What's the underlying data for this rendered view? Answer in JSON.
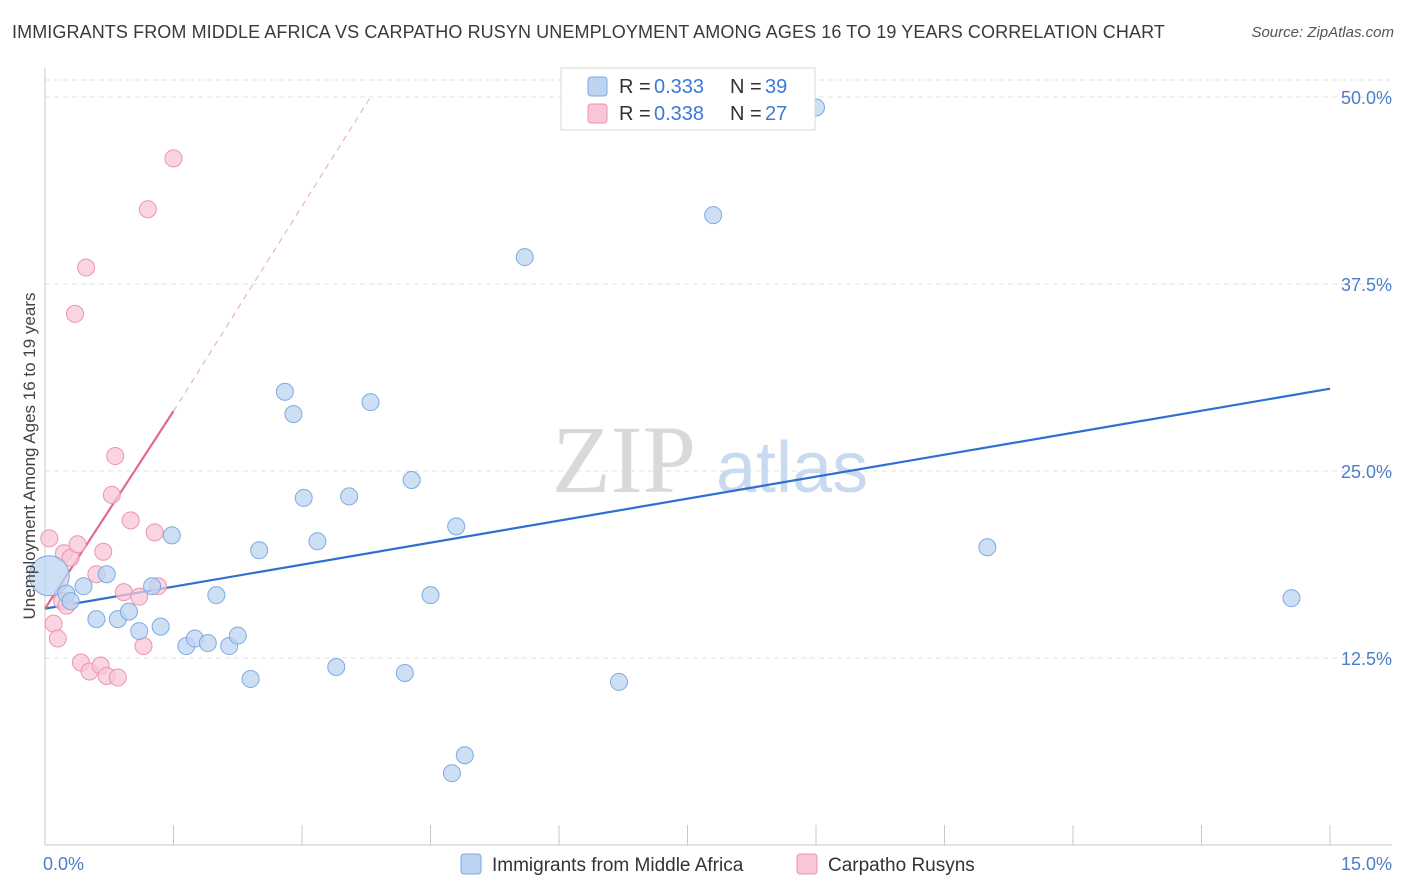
{
  "title": "IMMIGRANTS FROM MIDDLE AFRICA VS CARPATHO RUSYN UNEMPLOYMENT AMONG AGES 16 TO 19 YEARS CORRELATION CHART",
  "source": "Source: ZipAtlas.com",
  "watermark": {
    "zip": "ZIP",
    "atlas": "atlas"
  },
  "legend_top": {
    "series1": {
      "r_label": "R = ",
      "r_value": "0.333",
      "n_label": "N = ",
      "n_value": "39"
    },
    "series2": {
      "r_label": "R = ",
      "r_value": "0.338",
      "n_label": "N = ",
      "n_value": "27"
    }
  },
  "colors": {
    "blue_fill": "#bcd4f2",
    "blue_stroke": "#7eaadf",
    "blue_line": "#2f6fcf",
    "pink_fill": "#f8c6d6",
    "pink_stroke": "#ec94b2",
    "pink_line": "#e2698f",
    "grid": "#e2e2e2",
    "axis_label": "#4a7ec9"
  },
  "chart_data": {
    "type": "scatter",
    "title": "IMMIGRANTS FROM MIDDLE AFRICA VS CARPATHO RUSYN UNEMPLOYMENT AMONG AGES 16 TO 19 YEARS CORRELATION CHART",
    "xlabel": "",
    "ylabel": "Unemployment Among Ages 16 to 19 years",
    "xlim": [
      0,
      15
    ],
    "ylim": [
      0,
      50
    ],
    "x_tick_labels": [
      "0.0%",
      "15.0%"
    ],
    "y_ticks": [
      12.5,
      25.0,
      37.5,
      50.0
    ],
    "y_tick_labels": [
      "12.5%",
      "25.0%",
      "37.5%",
      "50.0%"
    ],
    "grid": true,
    "legend_position": "top-center",
    "series": [
      {
        "name": "Immigrants from Middle Africa",
        "color": "#bcd4f2",
        "points": [
          {
            "x": 0.05,
            "y": 18.0,
            "big": true
          },
          {
            "x": 0.25,
            "y": 16.8
          },
          {
            "x": 0.3,
            "y": 16.3
          },
          {
            "x": 0.45,
            "y": 17.3
          },
          {
            "x": 0.6,
            "y": 15.1
          },
          {
            "x": 0.72,
            "y": 18.1
          },
          {
            "x": 0.85,
            "y": 15.1
          },
          {
            "x": 0.98,
            "y": 15.6
          },
          {
            "x": 1.1,
            "y": 14.3
          },
          {
            "x": 1.25,
            "y": 17.3
          },
          {
            "x": 1.35,
            "y": 14.6
          },
          {
            "x": 1.48,
            "y": 20.7
          },
          {
            "x": 1.65,
            "y": 13.3
          },
          {
            "x": 1.75,
            "y": 13.8
          },
          {
            "x": 1.9,
            "y": 13.5
          },
          {
            "x": 2.0,
            "y": 16.7
          },
          {
            "x": 2.15,
            "y": 13.3
          },
          {
            "x": 2.25,
            "y": 14.0
          },
          {
            "x": 2.4,
            "y": 11.1
          },
          {
            "x": 2.5,
            "y": 19.7
          },
          {
            "x": 2.8,
            "y": 30.3
          },
          {
            "x": 2.9,
            "y": 28.8
          },
          {
            "x": 3.02,
            "y": 23.2
          },
          {
            "x": 3.18,
            "y": 20.3
          },
          {
            "x": 3.4,
            "y": 11.9
          },
          {
            "x": 3.55,
            "y": 23.3
          },
          {
            "x": 3.8,
            "y": 29.6
          },
          {
            "x": 4.2,
            "y": 11.5
          },
          {
            "x": 4.28,
            "y": 24.4
          },
          {
            "x": 4.5,
            "y": 16.7
          },
          {
            "x": 4.75,
            "y": 4.8
          },
          {
            "x": 4.8,
            "y": 21.3
          },
          {
            "x": 4.9,
            "y": 6.0
          },
          {
            "x": 5.6,
            "y": 39.3
          },
          {
            "x": 6.7,
            "y": 10.9
          },
          {
            "x": 7.8,
            "y": 42.1
          },
          {
            "x": 9.0,
            "y": 49.3
          },
          {
            "x": 11.0,
            "y": 19.9
          },
          {
            "x": 14.55,
            "y": 16.5
          }
        ],
        "trend": {
          "x1": 0.0,
          "y1": 15.8,
          "x2": 15.0,
          "y2": 30.5
        }
      },
      {
        "name": "Carpatho Rusyns",
        "color": "#f8c6d6",
        "points": [
          {
            "x": 0.05,
            "y": 20.5
          },
          {
            "x": 0.1,
            "y": 14.8
          },
          {
            "x": 0.15,
            "y": 13.8
          },
          {
            "x": 0.2,
            "y": 16.3
          },
          {
            "x": 0.22,
            "y": 19.5
          },
          {
            "x": 0.25,
            "y": 16.0
          },
          {
            "x": 0.3,
            "y": 19.2
          },
          {
            "x": 0.35,
            "y": 35.5
          },
          {
            "x": 0.38,
            "y": 20.1
          },
          {
            "x": 0.42,
            "y": 12.2
          },
          {
            "x": 0.48,
            "y": 38.6
          },
          {
            "x": 0.52,
            "y": 11.6
          },
          {
            "x": 0.6,
            "y": 18.1
          },
          {
            "x": 0.65,
            "y": 12.0
          },
          {
            "x": 0.68,
            "y": 19.6
          },
          {
            "x": 0.72,
            "y": 11.3
          },
          {
            "x": 0.78,
            "y": 23.4
          },
          {
            "x": 0.82,
            "y": 26.0
          },
          {
            "x": 0.85,
            "y": 11.2
          },
          {
            "x": 0.92,
            "y": 16.9
          },
          {
            "x": 1.0,
            "y": 21.7
          },
          {
            "x": 1.1,
            "y": 16.6
          },
          {
            "x": 1.15,
            "y": 13.3
          },
          {
            "x": 1.2,
            "y": 42.5
          },
          {
            "x": 1.28,
            "y": 20.9
          },
          {
            "x": 1.32,
            "y": 17.3
          },
          {
            "x": 1.5,
            "y": 45.9
          }
        ],
        "trend": {
          "x1": 0.0,
          "y1": 15.8,
          "x2": 1.5,
          "y2": 29.0
        },
        "trend_dashed": {
          "x1": 1.5,
          "y1": 29.0,
          "x2": 3.8,
          "y2": 50.0
        }
      }
    ]
  },
  "bottom_legend": {
    "item1": "Immigrants from Middle Africa",
    "item2": "Carpatho Rusyns"
  }
}
